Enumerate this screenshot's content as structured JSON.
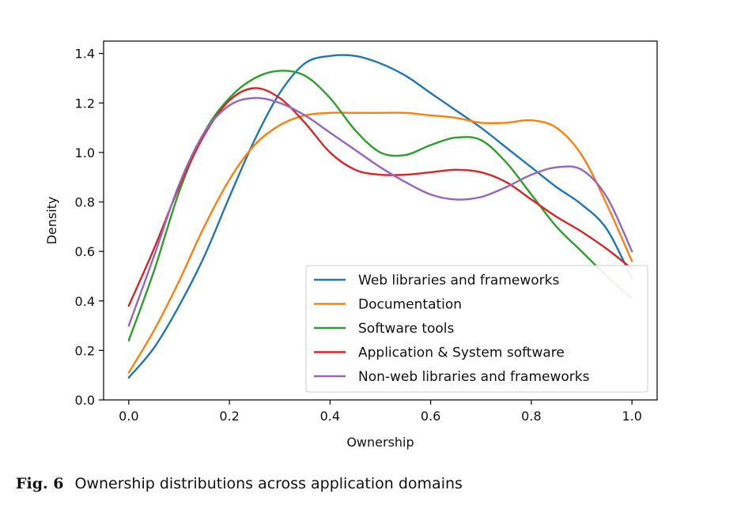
{
  "chart_data": {
    "type": "line",
    "title": "",
    "xlabel": "Ownership",
    "ylabel": "Density",
    "xlim": [
      -0.05,
      1.05
    ],
    "ylim": [
      0.0,
      1.45
    ],
    "xticks": [
      0.0,
      0.2,
      0.4,
      0.6,
      0.8,
      1.0
    ],
    "yticks": [
      0.0,
      0.2,
      0.4,
      0.6,
      0.8,
      1.0,
      1.2,
      1.4
    ],
    "xtick_labels": [
      "0.0",
      "0.2",
      "0.4",
      "0.6",
      "0.8",
      "1.0"
    ],
    "ytick_labels": [
      "0.0",
      "0.2",
      "0.4",
      "0.6",
      "0.8",
      "1.0",
      "1.2",
      "1.4"
    ],
    "legend_position": "lower-right",
    "grid": false,
    "x": [
      0.0,
      0.05,
      0.1,
      0.15,
      0.2,
      0.25,
      0.3,
      0.35,
      0.4,
      0.45,
      0.5,
      0.55,
      0.6,
      0.65,
      0.7,
      0.75,
      0.8,
      0.85,
      0.9,
      0.95,
      1.0
    ],
    "series": [
      {
        "name": "Web libraries and frameworks",
        "color": "#1f77b4",
        "values": [
          0.09,
          0.21,
          0.38,
          0.58,
          0.82,
          1.05,
          1.24,
          1.36,
          1.39,
          1.39,
          1.36,
          1.31,
          1.24,
          1.17,
          1.1,
          1.02,
          0.94,
          0.86,
          0.79,
          0.69,
          0.49
        ]
      },
      {
        "name": "Documentation",
        "color": "#ff7f0e",
        "values": [
          0.11,
          0.28,
          0.48,
          0.7,
          0.89,
          1.03,
          1.11,
          1.15,
          1.16,
          1.16,
          1.16,
          1.16,
          1.15,
          1.14,
          1.12,
          1.12,
          1.13,
          1.1,
          0.99,
          0.79,
          0.56
        ]
      },
      {
        "name": "Software tools",
        "color": "#2ca02c",
        "values": [
          0.24,
          0.52,
          0.84,
          1.08,
          1.22,
          1.3,
          1.33,
          1.31,
          1.22,
          1.09,
          1.0,
          0.99,
          1.03,
          1.06,
          1.05,
          0.96,
          0.83,
          0.7,
          0.6,
          0.5,
          0.41
        ]
      },
      {
        "name": "Application & System software",
        "color": "#d62728",
        "values": [
          0.38,
          0.61,
          0.86,
          1.07,
          1.21,
          1.26,
          1.22,
          1.12,
          1.0,
          0.93,
          0.91,
          0.91,
          0.92,
          0.93,
          0.92,
          0.88,
          0.81,
          0.74,
          0.68,
          0.61,
          0.53
        ]
      },
      {
        "name": "Non-web libraries and frameworks",
        "color": "#9467bd",
        "values": [
          0.3,
          0.58,
          0.87,
          1.08,
          1.19,
          1.22,
          1.2,
          1.15,
          1.08,
          1.01,
          0.94,
          0.88,
          0.83,
          0.81,
          0.82,
          0.86,
          0.91,
          0.94,
          0.93,
          0.82,
          0.6
        ]
      }
    ]
  },
  "caption": {
    "fig_label": "Fig. 6",
    "text": "Ownership distributions across application domains"
  }
}
